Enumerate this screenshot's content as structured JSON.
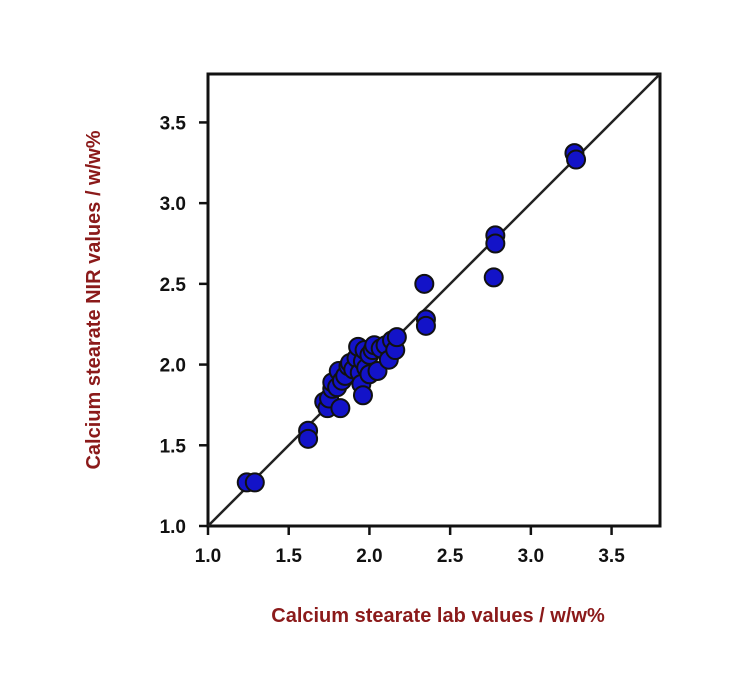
{
  "chart_data": {
    "type": "scatter",
    "xlabel": "Calcium stearate lab values / w/w%",
    "ylabel": "Calcium stearate NIR values / w/w%",
    "xlim": [
      1.0,
      3.8
    ],
    "ylim": [
      1.0,
      3.8
    ],
    "xticks": [
      "1.0",
      "1.5",
      "2.0",
      "2.5",
      "3.0",
      "3.5"
    ],
    "yticks": [
      "1.0",
      "1.5",
      "2.0",
      "2.5",
      "3.0",
      "3.5"
    ],
    "reference_line": {
      "from": [
        1.0,
        1.0
      ],
      "to": [
        3.8,
        3.8
      ]
    },
    "grid": false,
    "legend": "none",
    "colors": {
      "marker_fill": "#1313c8",
      "marker_edge": "#111111",
      "axis_title": "#8b1a1a",
      "line": "#222222"
    },
    "series": [
      {
        "points": [
          [
            1.24,
            1.27
          ],
          [
            1.29,
            1.27
          ],
          [
            1.62,
            1.59
          ],
          [
            1.62,
            1.54
          ],
          [
            1.72,
            1.77
          ],
          [
            1.74,
            1.73
          ],
          [
            1.75,
            1.79
          ],
          [
            1.77,
            1.85
          ],
          [
            1.77,
            1.89
          ],
          [
            1.8,
            1.86
          ],
          [
            1.81,
            1.96
          ],
          [
            1.82,
            1.73
          ],
          [
            1.83,
            1.9
          ],
          [
            1.85,
            1.93
          ],
          [
            1.87,
            1.99
          ],
          [
            1.88,
            2.01
          ],
          [
            1.9,
            1.97
          ],
          [
            1.92,
            2.04
          ],
          [
            1.93,
            2.11
          ],
          [
            1.94,
            1.95
          ],
          [
            1.95,
            1.88
          ],
          [
            1.96,
            1.81
          ],
          [
            1.96,
            2.02
          ],
          [
            1.97,
            2.09
          ],
          [
            1.98,
            1.98
          ],
          [
            2.0,
            2.06
          ],
          [
            2.0,
            1.94
          ],
          [
            2.02,
            2.09
          ],
          [
            2.03,
            2.12
          ],
          [
            2.05,
            1.96
          ],
          [
            2.07,
            2.1
          ],
          [
            2.1,
            2.12
          ],
          [
            2.12,
            2.03
          ],
          [
            2.14,
            2.15
          ],
          [
            2.16,
            2.09
          ],
          [
            2.17,
            2.17
          ],
          [
            2.34,
            2.5
          ],
          [
            2.35,
            2.28
          ],
          [
            2.35,
            2.24
          ],
          [
            2.77,
            2.54
          ],
          [
            2.78,
            2.8
          ],
          [
            2.78,
            2.75
          ],
          [
            3.27,
            3.31
          ],
          [
            3.28,
            3.27
          ]
        ]
      }
    ]
  }
}
